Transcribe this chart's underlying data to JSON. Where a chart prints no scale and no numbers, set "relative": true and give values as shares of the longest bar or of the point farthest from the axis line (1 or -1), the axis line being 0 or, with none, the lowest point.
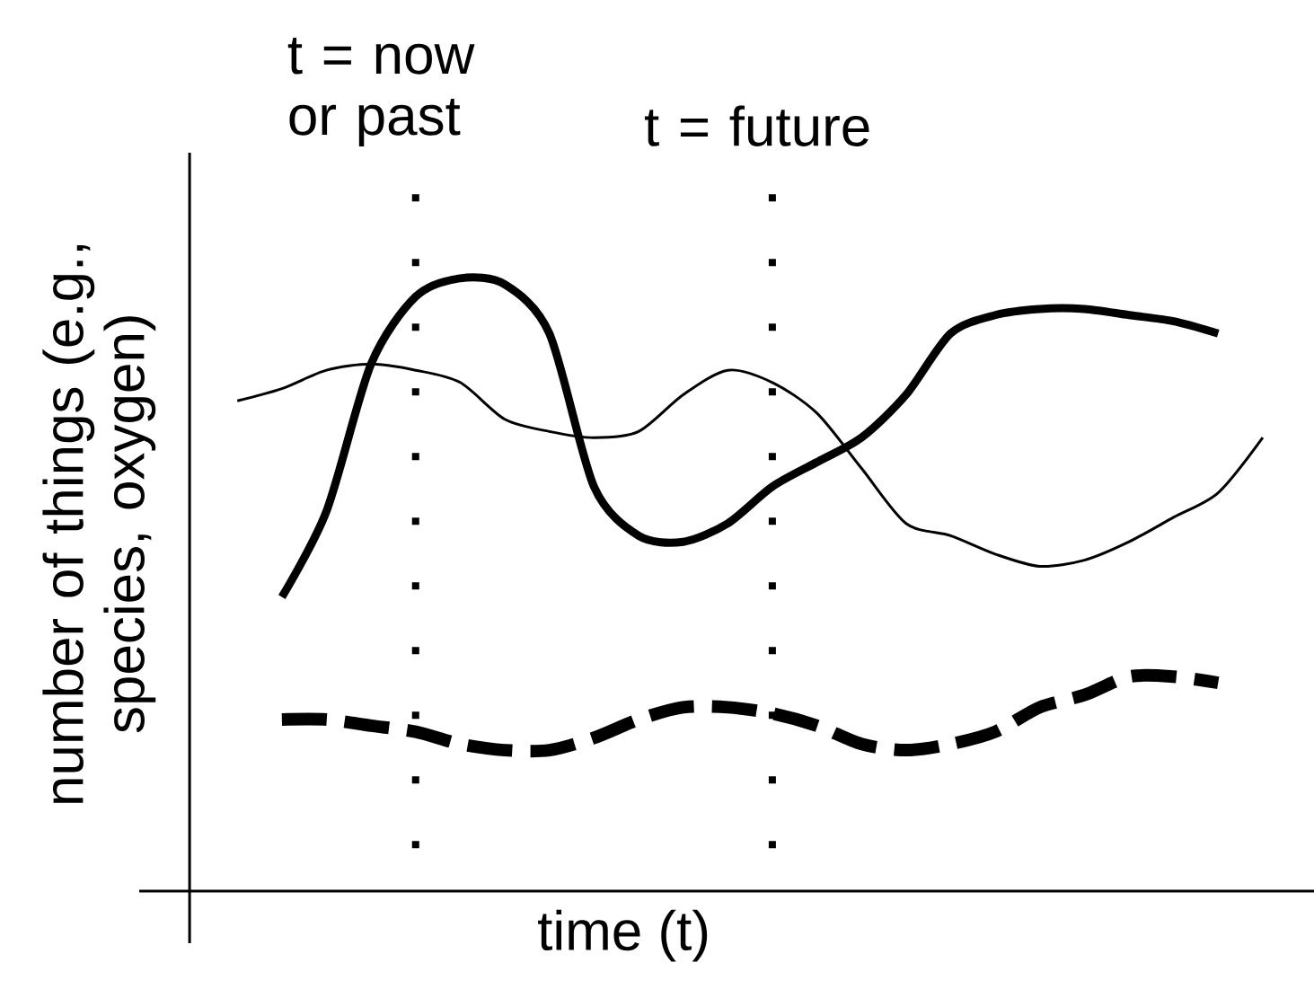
{
  "chart_data": {
    "type": "line",
    "relative": true,
    "xlabel": "time (t)",
    "ylabel": "number of things (e.g., species, oxygen)",
    "categories": [
      null,
      null,
      null,
      null,
      null,
      null,
      null,
      null,
      null,
      null,
      null,
      null,
      null,
      null,
      null,
      null,
      null,
      null,
      null,
      null,
      null,
      null,
      null,
      null
    ],
    "series": [
      {
        "color": "#000000",
        "line_style": "solid",
        "values": [
          null,
          0.48,
          0.62,
          0.86,
          0.97,
          1.0,
          0.99,
          0.91,
          0.66,
          0.58,
          0.57,
          0.6,
          0.66,
          0.7,
          0.74,
          0.81,
          0.91,
          0.94,
          0.95,
          0.95,
          0.94,
          0.93,
          0.91,
          null
        ]
      },
      {
        "color": "#000000",
        "line_style": "solid",
        "values": [
          0.8,
          0.82,
          0.85,
          0.86,
          0.85,
          0.83,
          0.77,
          0.75,
          0.74,
          0.75,
          0.81,
          0.85,
          0.83,
          0.78,
          0.69,
          0.6,
          0.58,
          0.55,
          0.53,
          0.54,
          0.57,
          0.61,
          0.65,
          0.74
        ]
      },
      {
        "color": "#000000",
        "line_style": "dashed",
        "values": [
          null,
          0.28,
          0.28,
          0.27,
          0.26,
          0.24,
          0.23,
          0.23,
          0.25,
          0.28,
          0.3,
          0.3,
          0.29,
          0.27,
          0.24,
          0.23,
          0.24,
          0.26,
          0.3,
          0.32,
          0.35,
          0.35,
          0.34,
          null
        ]
      }
    ],
    "annotations": [
      "t = now or past",
      "t = future"
    ]
  }
}
